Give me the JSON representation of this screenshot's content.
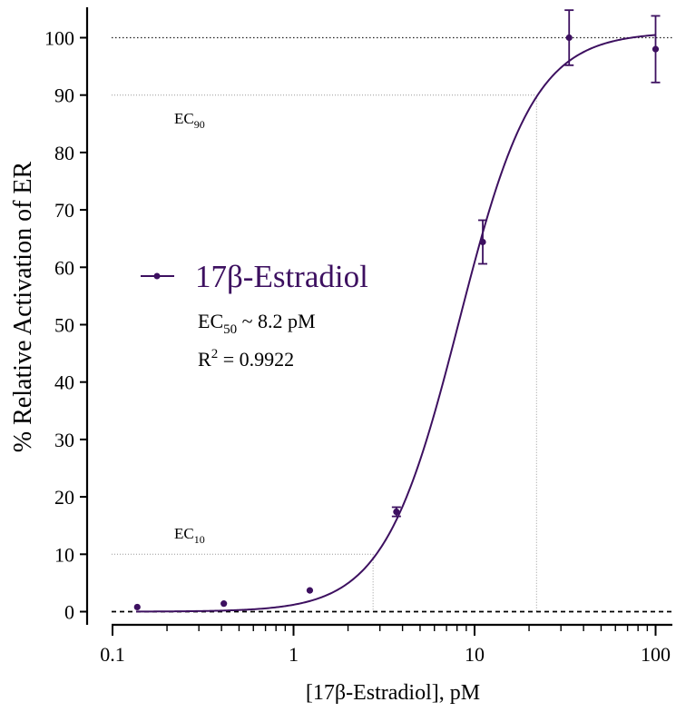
{
  "chart_data": {
    "type": "scatter",
    "xscale": "log",
    "xlabel": "[17β-Estradiol], pM",
    "ylabel": "% Relative Activation of ER",
    "xlim": [
      0.1,
      130
    ],
    "ylim": [
      -4,
      105
    ],
    "xticks": [
      0.1,
      1,
      10,
      100
    ],
    "xtick_labels": [
      "0.1",
      "1",
      "10",
      "100"
    ],
    "yticks": [
      0,
      10,
      20,
      30,
      40,
      50,
      60,
      70,
      80,
      90,
      100
    ],
    "ytick_labels": [
      "0",
      "10",
      "20",
      "30",
      "40",
      "50",
      "60",
      "70",
      "80",
      "90",
      "100"
    ],
    "grid": false,
    "legend_position": "center-left",
    "series": [
      {
        "name": "17β-Estradiol",
        "color": "#3d1060",
        "x": [
          0.137,
          0.412,
          1.23,
          3.7,
          11.1,
          33.3,
          100
        ],
        "y": [
          0.8,
          1.4,
          3.7,
          17.4,
          64.4,
          100.0,
          98.0
        ],
        "err": [
          0,
          0,
          0,
          0.8,
          3.8,
          4.8,
          5.8
        ],
        "fit": {
          "model": "4PL",
          "bottom": 0,
          "top": 101,
          "ec50": 8.2,
          "hill": 2.1
        }
      }
    ],
    "annotations": {
      "ec50_text": "EC",
      "ec50_sub": "50",
      "ec50_value": " ~ 8.2 pM",
      "r2_text": "R",
      "r2_sup": "2",
      "r2_value": " = 0.9922",
      "ec90_text": "EC",
      "ec90_sub": "90",
      "ec10_text": "EC",
      "ec10_sub": "10"
    },
    "reference_lines": {
      "y_dotted": [
        100,
        10,
        90
      ],
      "y_dashed": 0,
      "x_ec10": 2.75,
      "x_ec90": 22
    }
  }
}
